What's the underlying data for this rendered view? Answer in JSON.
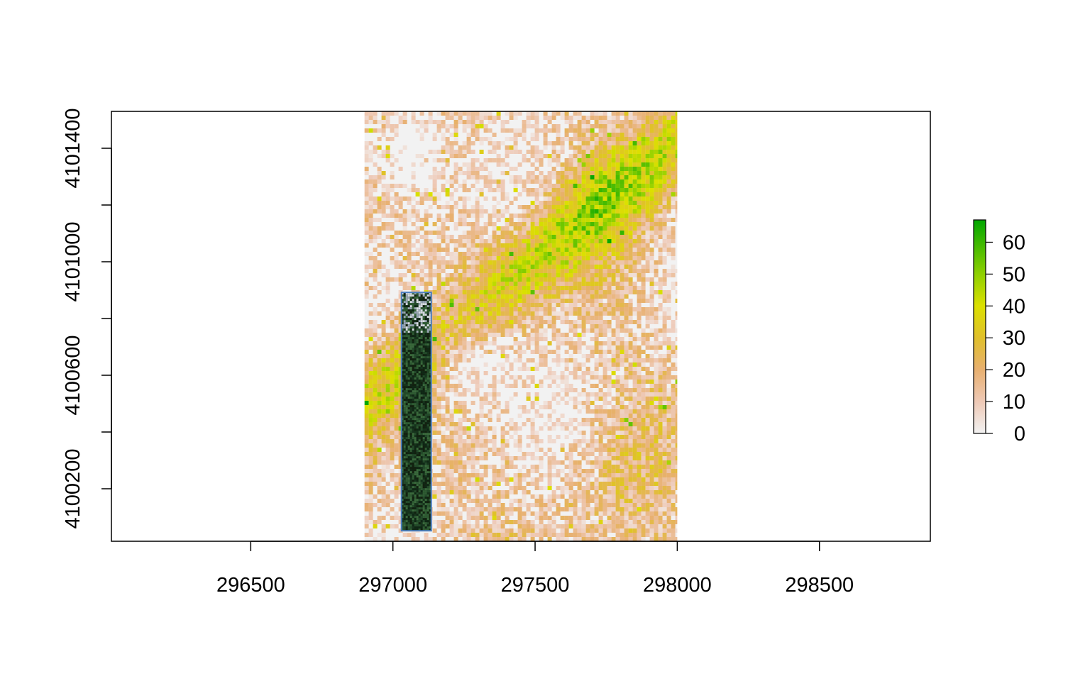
{
  "chart_data": {
    "type": "heatmap",
    "title": "",
    "xlabel": "",
    "ylabel": "",
    "xlim": [
      296010,
      298890
    ],
    "ylim": [
      4100015,
      4101530
    ],
    "x_ticks": [
      296500,
      297000,
      297500,
      298000,
      298500
    ],
    "y_ticks": [
      4100200,
      4100400,
      4100600,
      4100800,
      4101000,
      4101200,
      4101400
    ],
    "x_tick_labels": [
      "296500",
      "297000",
      "297500",
      "298000",
      "298500"
    ],
    "y_tick_labels": [
      "4100200",
      "4100600",
      "4101000",
      "4101400"
    ],
    "grid": false,
    "raster_extent": {
      "xmin": 296900,
      "xmax": 298000,
      "ymin": 4100015,
      "ymax": 4101530
    },
    "inset_image_extent": {
      "xmin": 297030,
      "xmax": 297135,
      "ymin": 4100052,
      "ymax": 4100892
    },
    "colorbar": {
      "min": 0,
      "max": 67,
      "ticks": [
        0,
        10,
        20,
        30,
        40,
        50,
        60
      ],
      "tick_labels": [
        "0",
        "10",
        "20",
        "30",
        "40",
        "50",
        "60"
      ],
      "placement": "right",
      "color_stops": [
        {
          "value": 0,
          "color": "#f2f2f2"
        },
        {
          "value": 10,
          "color": "#eec9b6"
        },
        {
          "value": 20,
          "color": "#e8b070"
        },
        {
          "value": 30,
          "color": "#e0c02b"
        },
        {
          "value": 40,
          "color": "#dce000"
        },
        {
          "value": 50,
          "color": "#8fd000"
        },
        {
          "value": 67,
          "color": "#00a600"
        }
      ]
    }
  }
}
